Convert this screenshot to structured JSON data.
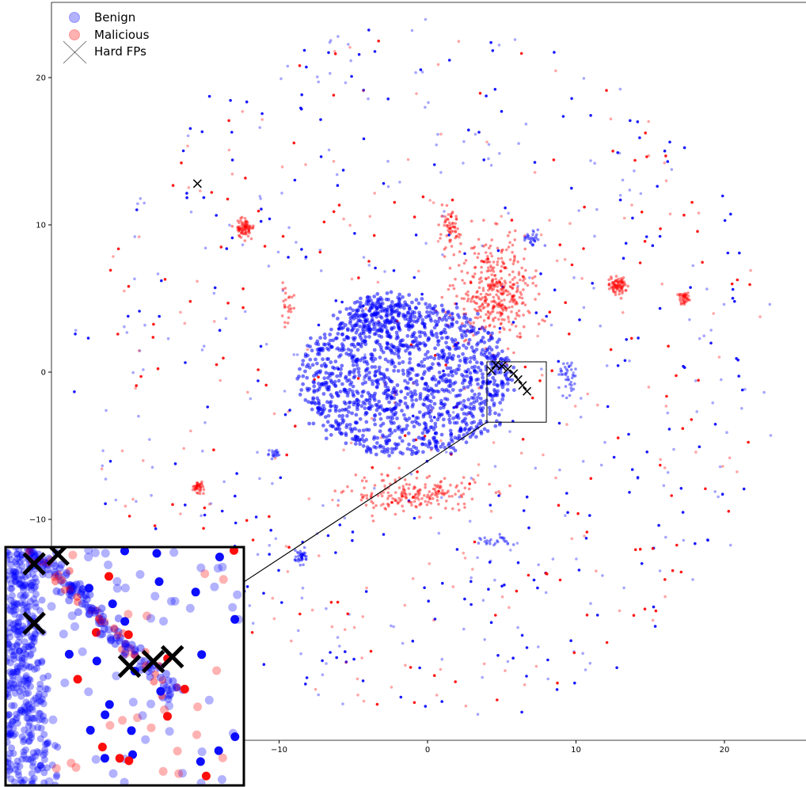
{
  "chart_data": {
    "type": "scatter",
    "title": "",
    "xlabel": "",
    "ylabel": "",
    "xlim": [
      -25,
      25.5
    ],
    "ylim": [
      -25,
      25
    ],
    "x_ticks": [
      -10,
      0,
      10,
      20
    ],
    "y_ticks": [
      -10,
      0,
      10,
      20
    ],
    "x_tick_labels": [
      "−10",
      "0",
      "10",
      "20"
    ],
    "y_tick_labels": [
      "−10",
      "0",
      "10",
      "20"
    ],
    "grid": false,
    "legend_position": "top-left",
    "legend": [
      {
        "label": "Benign",
        "marker": "circle",
        "color": "#0000ff"
      },
      {
        "label": "Malicious",
        "marker": "circle",
        "color": "#ff0000"
      },
      {
        "label": "Hard FPs",
        "marker": "x",
        "color": "#000000"
      }
    ],
    "colors": {
      "benign": "#0000ff",
      "malicious": "#ff0000",
      "hard_fp": "#000000"
    },
    "series": [
      {
        "name": "Benign",
        "clusters": [
          {
            "label": "main blob",
            "cx": -1.5,
            "cy": -0.5,
            "rx": 7.2,
            "ry": 5.2,
            "n": 1400,
            "dense": true
          },
          {
            "label": "blob upper lobe",
            "cx": -3,
            "cy": 4,
            "rx": 2.5,
            "ry": 1.3,
            "n": 180,
            "dense": true
          },
          {
            "label": "small cluster left-bottom",
            "cx": -8.5,
            "cy": -12.5,
            "rx": 0.5,
            "ry": 0.5,
            "n": 40
          },
          {
            "label": "cluster right",
            "cx": 9.5,
            "cy": -0.5,
            "rx": 0.6,
            "ry": 1.2,
            "n": 40
          },
          {
            "label": "cluster upper-right",
            "cx": 7,
            "cy": 9,
            "rx": 0.6,
            "ry": 0.6,
            "n": 30
          },
          {
            "label": "cluster left",
            "cx": -10.3,
            "cy": -5.5,
            "rx": 0.4,
            "ry": 0.4,
            "n": 20
          },
          {
            "label": "cluster bottom",
            "cx": 4.5,
            "cy": -11.5,
            "rx": 1.2,
            "ry": 0.4,
            "n": 25
          }
        ],
        "scatter_points": 520,
        "scatter_radius": 24
      },
      {
        "name": "Malicious",
        "clusters": [
          {
            "label": "square cluster left",
            "cx": -12.3,
            "cy": 9.8,
            "rx": 0.6,
            "ry": 0.6,
            "n": 80
          },
          {
            "label": "square cluster right",
            "cx": 12.8,
            "cy": 5.8,
            "rx": 0.6,
            "ry": 0.6,
            "n": 80
          },
          {
            "label": "cross cluster right",
            "cx": 17.3,
            "cy": 5,
            "rx": 0.4,
            "ry": 0.4,
            "n": 40
          },
          {
            "label": "cross cluster left",
            "cx": -15.5,
            "cy": -7.8,
            "rx": 0.4,
            "ry": 0.4,
            "n": 40
          },
          {
            "label": "arc upper-right",
            "cx": 4.5,
            "cy": 5.5,
            "rx": 2.5,
            "ry": 3.5,
            "n": 400
          },
          {
            "label": "arc lower",
            "cx": -1,
            "cy": -8.3,
            "rx": 4.5,
            "ry": 1.2,
            "n": 200
          },
          {
            "label": "streak upper",
            "cx": 1.5,
            "cy": 9.5,
            "rx": 0.7,
            "ry": 1.3,
            "n": 60
          },
          {
            "label": "streak left",
            "cx": -9.5,
            "cy": 4.5,
            "rx": 0.5,
            "ry": 1.2,
            "n": 25
          }
        ],
        "scatter_points": 330,
        "scatter_radius": 23
      },
      {
        "name": "Hard FPs",
        "points": [
          [
            -15.5,
            12.8
          ],
          [
            4.6,
            0.5
          ],
          [
            5.0,
            0.4
          ],
          [
            5.4,
            0.2
          ],
          [
            5.8,
            -0.1
          ],
          [
            6.1,
            -0.5
          ],
          [
            6.4,
            -0.9
          ],
          [
            6.7,
            -1.3
          ],
          [
            4.3,
            0.1
          ]
        ]
      }
    ],
    "inset": {
      "source_region_x": [
        4,
        8
      ],
      "source_region_y": [
        -3.4,
        0.7
      ],
      "hard_fp_markers": [
        [
          0.12,
          0.07
        ],
        [
          0.22,
          0.03
        ],
        [
          0.12,
          0.32
        ],
        [
          0.52,
          0.5
        ],
        [
          0.62,
          0.48
        ],
        [
          0.7,
          0.46
        ]
      ]
    }
  }
}
